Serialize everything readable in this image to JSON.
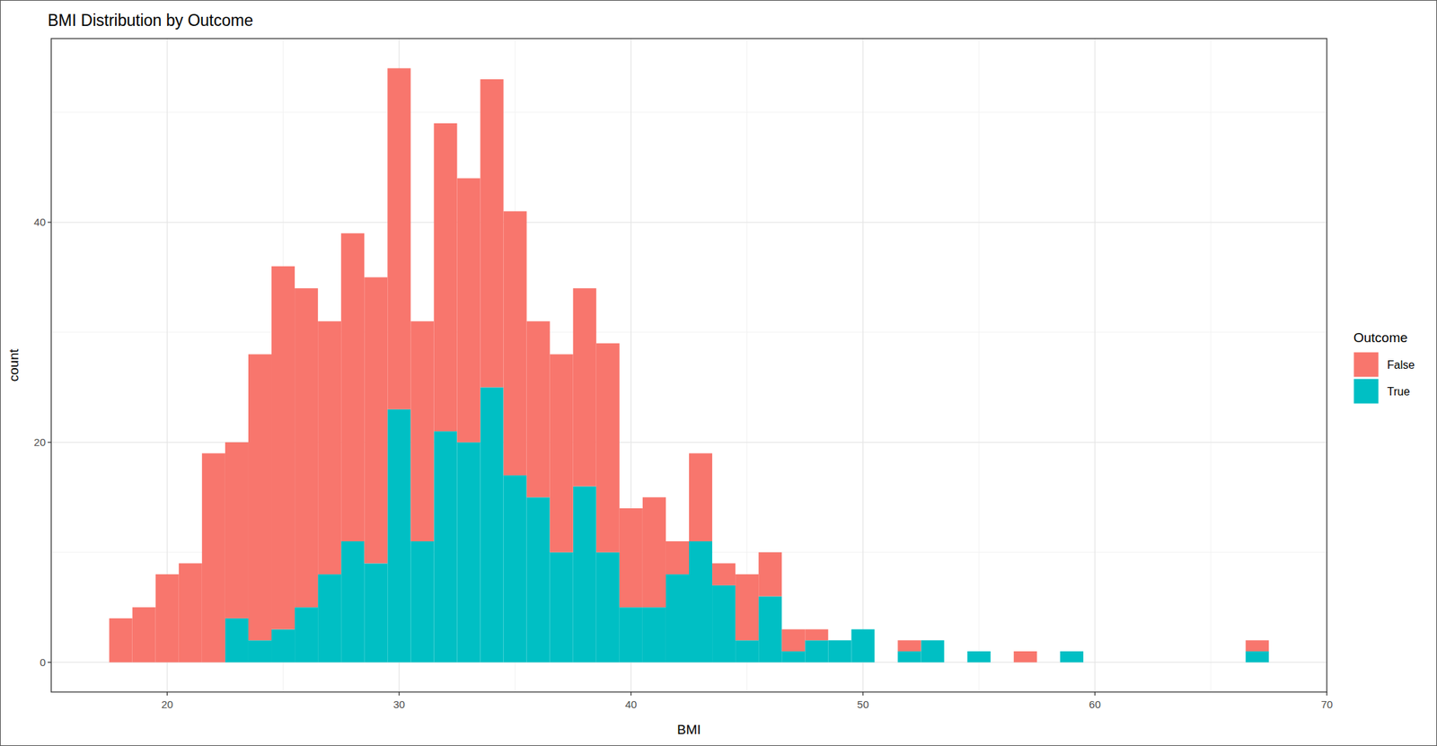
{
  "chart_data": {
    "type": "histogram",
    "title": "BMI Distribution by Outcome",
    "x_label": "BMI",
    "y_label": "count",
    "legend_title": "Outcome",
    "stacked": true,
    "grid": true,
    "legend": "right",
    "bins": [
      17.5,
      18.5,
      19.5,
      20.5,
      21.5,
      22.5,
      23.5,
      24.5,
      25.5,
      26.5,
      27.5,
      28.5,
      29.5,
      30.5,
      31.5,
      32.5,
      33.5,
      34.5,
      35.5,
      36.5,
      37.5,
      38.5,
      39.5,
      40.5,
      41.5,
      42.5,
      43.5,
      44.5,
      45.5,
      46.5,
      47.5,
      48.5,
      49.5,
      50.5,
      51.5,
      52.5,
      53.5,
      54.5,
      55.5,
      56.5,
      57.5,
      58.5,
      59.5,
      60.5,
      61.5,
      62.5,
      63.5,
      64.5,
      65.5,
      66.5,
      67.5
    ],
    "series": [
      {
        "name": "False",
        "color": "#F8766D",
        "values": [
          4,
          5,
          8,
          9,
          19,
          16,
          26,
          33,
          29,
          23,
          28,
          26,
          31,
          20,
          28,
          24,
          28,
          24,
          16,
          18,
          18,
          19,
          9,
          10,
          3,
          8,
          2,
          6,
          4,
          2,
          1,
          0,
          0,
          0,
          1,
          0,
          0,
          0,
          0,
          1,
          0,
          0,
          0,
          0,
          0,
          0,
          0,
          0,
          0,
          1
        ]
      },
      {
        "name": "True",
        "color": "#00BFC4",
        "values": [
          0,
          0,
          0,
          0,
          0,
          4,
          2,
          3,
          5,
          8,
          11,
          9,
          23,
          11,
          21,
          20,
          25,
          17,
          15,
          10,
          16,
          10,
          5,
          5,
          8,
          11,
          7,
          2,
          6,
          1,
          2,
          2,
          3,
          0,
          1,
          2,
          0,
          1,
          0,
          0,
          0,
          1,
          0,
          0,
          0,
          0,
          0,
          0,
          0,
          1
        ]
      }
    ],
    "xlim": [
      15,
      70
    ],
    "xticks": [
      20,
      30,
      40,
      50,
      60,
      70
    ],
    "ylim": [
      -2.7,
      56.7
    ],
    "yticks": [
      0,
      20,
      40
    ]
  }
}
